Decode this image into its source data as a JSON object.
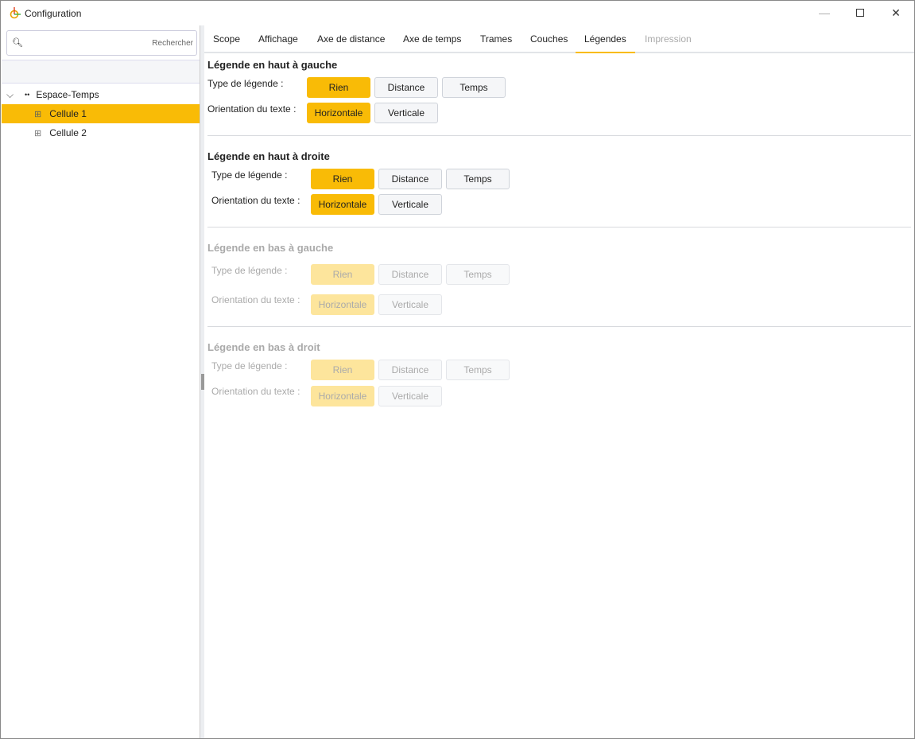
{
  "window": {
    "title": "Configuration",
    "controls": [
      "minimize",
      "maximize",
      "close"
    ]
  },
  "sidebar": {
    "search_placeholder": "Rechercher",
    "tree": [
      {
        "label": "Espace-Temps",
        "expanded": true,
        "icon": "cluster-icon"
      },
      {
        "label": "Cellule 1",
        "selected": true,
        "icon": "grid-icon"
      },
      {
        "label": "Cellule 2",
        "icon": "grid-icon"
      }
    ]
  },
  "tabs": [
    {
      "label": "Scope"
    },
    {
      "label": "Affichage"
    },
    {
      "label": "Axe de distance"
    },
    {
      "label": "Axe de temps"
    },
    {
      "label": "Trames"
    },
    {
      "label": "Couches"
    },
    {
      "label": "Légendes",
      "active": true
    },
    {
      "label": "Impression",
      "disabled": true
    }
  ],
  "colors": {
    "accent": "#f9bb06"
  },
  "sections": [
    {
      "title": "Légende en haut à gauche",
      "type_label": "Type de légende :",
      "orient_label": "Orientation du texte  :",
      "type_options": [
        "Rien",
        "Distance",
        "Temps"
      ],
      "type_selected": "Rien",
      "orient_options": [
        "Horizontale",
        "Verticale"
      ],
      "orient_selected": "Horizontale",
      "enabled": true
    },
    {
      "title": "Légende en haut à droite",
      "type_label": "Type de légende :",
      "orient_label": "Orientation du texte  :",
      "type_options": [
        "Rien",
        "Distance",
        "Temps"
      ],
      "type_selected": "Rien",
      "orient_options": [
        "Horizontale",
        "Verticale"
      ],
      "orient_selected": "Horizontale",
      "enabled": true
    },
    {
      "title": "Légende en bas à gauche",
      "type_label": "Type de légende :",
      "orient_label": "Orientation du texte  :",
      "type_options": [
        "Rien",
        "Distance",
        "Temps"
      ],
      "type_selected": "Rien",
      "orient_options": [
        "Horizontale",
        "Verticale"
      ],
      "orient_selected": "Horizontale",
      "enabled": false
    },
    {
      "title": "Légende en bas à droit",
      "type_label": "Type de légende :",
      "orient_label": "Orientation du texte  :",
      "type_options": [
        "Rien",
        "Distance",
        "Temps"
      ],
      "type_selected": "Rien",
      "orient_options": [
        "Horizontale",
        "Verticale"
      ],
      "orient_selected": "Horizontale",
      "enabled": false
    }
  ]
}
